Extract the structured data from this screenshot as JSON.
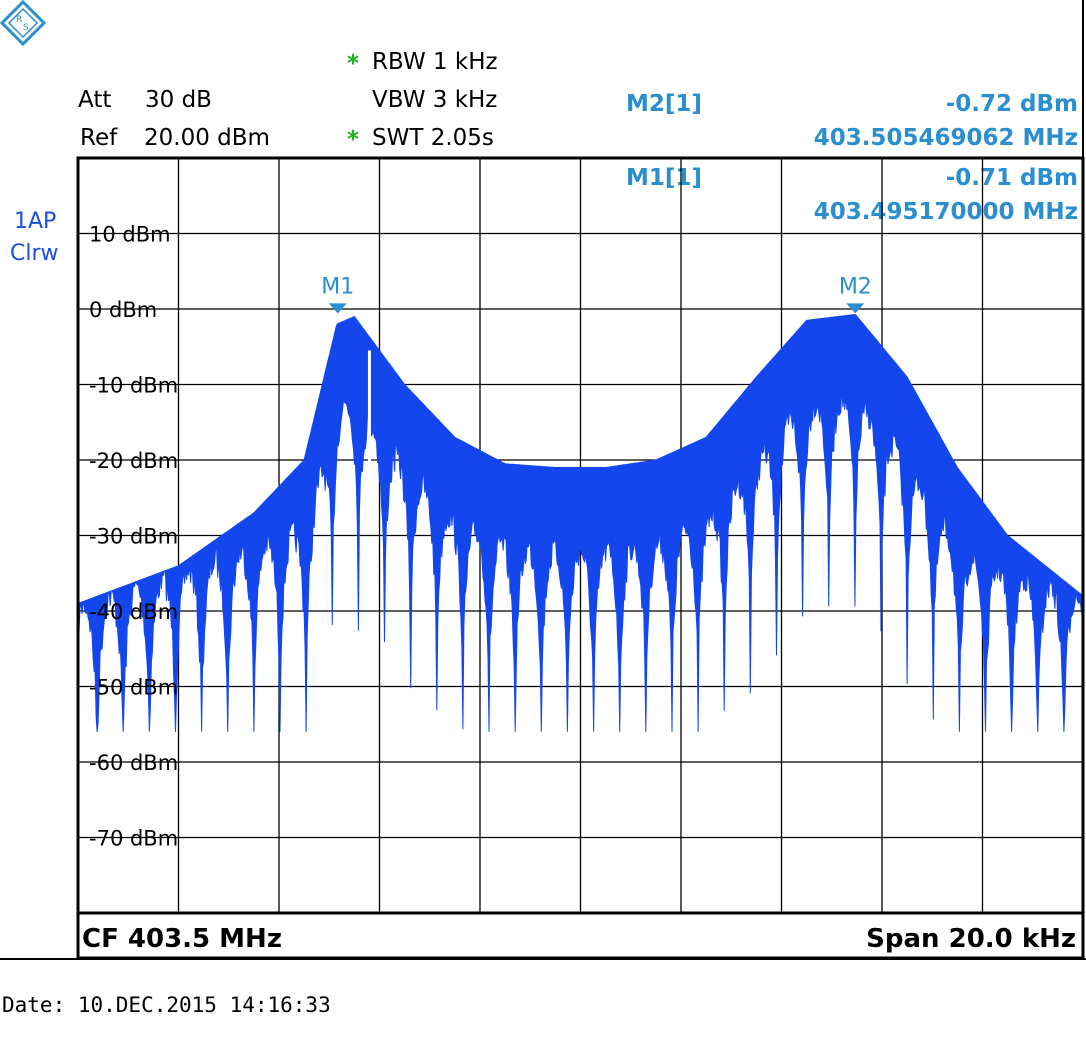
{
  "header": {
    "att_label": "Att",
    "att_value": "30 dB",
    "ref_label": "Ref",
    "ref_value": "20.00 dBm",
    "rbw_star": "*",
    "rbw": "RBW 1 kHz",
    "vbw": "VBW 3 kHz",
    "swt_star": "*",
    "swt": "SWT 2.05s"
  },
  "markers": [
    {
      "name": "M2[1]",
      "level": "-0.72 dBm",
      "freq": "403.505469062 MHz"
    },
    {
      "name": "M1[1]",
      "level": "-0.71 dBm",
      "freq": "403.495170000 MHz"
    }
  ],
  "trace_label": {
    "line1": "1AP",
    "line2": "Clrw"
  },
  "plot_markers": [
    {
      "label": "M1",
      "freq_mhz": 403.49517,
      "level_dbm": -0.71
    },
    {
      "label": "M2",
      "freq_mhz": 403.505469062,
      "level_dbm": -0.72
    }
  ],
  "footer": {
    "cf": "CF 403.5 MHz",
    "span": "Span 20.0 kHz",
    "date": "Date: 10.DEC.2015  14:16:33"
  },
  "colors": {
    "trace": "#1446ee",
    "marker": "#2a8ecf",
    "star": "#19b319",
    "trace_label": "#1a4fe0"
  },
  "chart_data": {
    "type": "line",
    "x_center_mhz": 403.5,
    "x_span_khz": 20.0,
    "ylim": [
      -80,
      20
    ],
    "y_tick_labels": [
      "10 dBm",
      "0 dBm",
      "-10 dBm",
      "-20 dBm",
      "-30 dBm",
      "-40 dBm",
      "-50 dBm",
      "-60 dBm",
      "-70 dBm"
    ],
    "y_tick_values": [
      10,
      0,
      -10,
      -20,
      -30,
      -40,
      -50,
      -60,
      -70
    ],
    "grid": true,
    "grid_divisions_x": 10,
    "grid_divisions_y": 10,
    "series": [
      {
        "envelope_offset_khz": [
          -10,
          -8,
          -6.5,
          -5.5,
          -4.85,
          -4.5,
          -3.5,
          -2.5,
          -1.5,
          -0.5,
          0,
          0.5,
          1.5,
          2.5,
          3.5,
          4.5,
          5.47,
          6.5,
          7.5,
          8.5,
          10
        ],
        "envelope_dbm": [
          -39,
          -34,
          -27,
          -20,
          -2,
          -1,
          -10,
          -17,
          -20.5,
          -21,
          -21,
          -21,
          -20,
          -17,
          -9,
          -1.5,
          -0.72,
          -9,
          -21,
          -30,
          -38
        ]
      }
    ]
  }
}
